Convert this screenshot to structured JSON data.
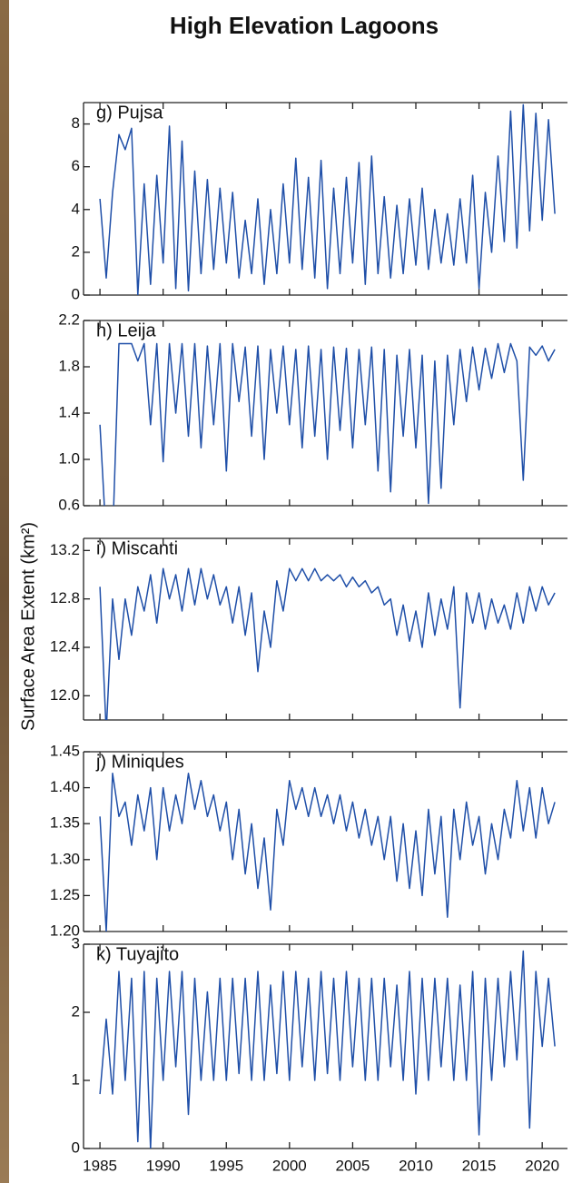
{
  "title": "High Elevation Lagoons",
  "ylabel": "Surface Area Extent (km²)",
  "chart_data": [
    {
      "type": "line",
      "title": "g) Pujsa",
      "color": "#1f4fa8",
      "x": [
        1985,
        1985.5,
        1986,
        1986.5,
        1987,
        1987.5,
        1988,
        1988.5,
        1989,
        1989.5,
        1990,
        1990.5,
        1991,
        1991.5,
        1992,
        1992.5,
        1993,
        1993.5,
        1994,
        1994.5,
        1995,
        1995.5,
        1996,
        1996.5,
        1997,
        1997.5,
        1998,
        1998.5,
        1999,
        1999.5,
        2000,
        2000.5,
        2001,
        2001.5,
        2002,
        2002.5,
        2003,
        2003.5,
        2004,
        2004.5,
        2005,
        2005.5,
        2006,
        2006.5,
        2007,
        2007.5,
        2008,
        2008.5,
        2009,
        2009.5,
        2010,
        2010.5,
        2011,
        2011.5,
        2012,
        2012.5,
        2013,
        2013.5,
        2014,
        2014.5,
        2015,
        2015.5,
        2016,
        2016.5,
        2017,
        2017.5,
        2018,
        2018.5,
        2019,
        2019.5,
        2020,
        2020.5,
        2021
      ],
      "values": [
        4.5,
        0.8,
        4.8,
        7.5,
        6.8,
        7.8,
        0,
        5.2,
        0.5,
        5.6,
        1.5,
        7.9,
        0.3,
        7.2,
        0.2,
        5.8,
        1.0,
        5.4,
        1.2,
        5.0,
        1.5,
        4.8,
        0.8,
        3.5,
        1.0,
        4.5,
        0.5,
        4.0,
        1.0,
        5.2,
        1.5,
        6.4,
        1.2,
        5.5,
        0.8,
        6.3,
        0.3,
        5.0,
        1.0,
        5.5,
        1.5,
        6.2,
        0.5,
        6.5,
        1.0,
        4.6,
        0.8,
        4.2,
        1.0,
        4.5,
        1.4,
        5.0,
        1.2,
        4.0,
        1.5,
        3.8,
        1.4,
        4.5,
        1.5,
        5.6,
        0.3,
        4.8,
        2.0,
        6.5,
        2.5,
        8.6,
        2.2,
        8.9,
        3.0,
        8.5,
        3.5,
        8.2,
        3.8
      ],
      "xlim": [
        1983.7,
        2022
      ],
      "xticks": [
        1985,
        1990,
        1995,
        2000,
        2005,
        2010,
        2015,
        2020
      ],
      "ylim": [
        0,
        9
      ],
      "yticks": [
        0,
        2,
        4,
        6,
        8
      ]
    },
    {
      "type": "line",
      "title": "h) Leija",
      "color": "#1f4fa8",
      "x": [
        1985,
        1985.5,
        1986,
        1986.5,
        1987,
        1987.5,
        1988,
        1988.5,
        1989,
        1989.5,
        1990,
        1990.5,
        1991,
        1991.5,
        1992,
        1992.5,
        1993,
        1993.5,
        1994,
        1994.5,
        1995,
        1995.5,
        1996,
        1996.5,
        1997,
        1997.5,
        1998,
        1998.5,
        1999,
        1999.5,
        2000,
        2000.5,
        2001,
        2001.5,
        2002,
        2002.5,
        2003,
        2003.5,
        2004,
        2004.5,
        2005,
        2005.5,
        2006,
        2006.5,
        2007,
        2007.5,
        2008,
        2008.5,
        2009,
        2009.5,
        2010,
        2010.5,
        2011,
        2011.5,
        2012,
        2012.5,
        2013,
        2013.5,
        2014,
        2014.5,
        2015,
        2015.5,
        2016,
        2016.5,
        2017,
        2017.5,
        2018,
        2018.5,
        2019,
        2019.5,
        2020,
        2020.5,
        2021
      ],
      "values": [
        1.3,
        0.3,
        0.3,
        2.0,
        2.0,
        2.0,
        1.85,
        2.0,
        1.3,
        2.0,
        0.98,
        2.0,
        1.4,
        2.0,
        1.2,
        2.0,
        1.1,
        1.98,
        1.3,
        2.0,
        0.9,
        2.0,
        1.5,
        1.97,
        1.2,
        1.98,
        1.0,
        1.95,
        1.4,
        1.98,
        1.3,
        1.95,
        1.1,
        1.98,
        1.2,
        1.95,
        1.0,
        1.97,
        1.25,
        1.96,
        1.1,
        1.95,
        1.3,
        1.97,
        0.9,
        1.95,
        0.72,
        1.9,
        1.2,
        1.95,
        1.1,
        1.9,
        0.62,
        1.85,
        0.75,
        1.9,
        1.3,
        1.95,
        1.5,
        1.97,
        1.6,
        1.96,
        1.7,
        2.0,
        1.75,
        2.0,
        1.85,
        0.82,
        1.97,
        1.9,
        1.98,
        1.85,
        1.95
      ],
      "xlim": [
        1983.7,
        2022
      ],
      "xticks": [
        1985,
        1990,
        1995,
        2000,
        2005,
        2010,
        2015,
        2020
      ],
      "ylim": [
        0.6,
        2.2
      ],
      "yticks": [
        0.6,
        {
          "value": 1,
          "label": "1.0"
        },
        1.4,
        1.8,
        2.2
      ]
    },
    {
      "type": "line",
      "title": "i) Miscanti",
      "color": "#1f4fa8",
      "x": [
        1985,
        1985.5,
        1986,
        1986.5,
        1987,
        1987.5,
        1988,
        1988.5,
        1989,
        1989.5,
        1990,
        1990.5,
        1991,
        1991.5,
        1992,
        1992.5,
        1993,
        1993.5,
        1994,
        1994.5,
        1995,
        1995.5,
        1996,
        1996.5,
        1997,
        1997.5,
        1998,
        1998.5,
        1999,
        1999.5,
        2000,
        2000.5,
        2001,
        2001.5,
        2002,
        2002.5,
        2003,
        2003.5,
        2004,
        2004.5,
        2005,
        2005.5,
        2006,
        2006.5,
        2007,
        2007.5,
        2008,
        2008.5,
        2009,
        2009.5,
        2010,
        2010.5,
        2011,
        2011.5,
        2012,
        2012.5,
        2013,
        2013.5,
        2014,
        2014.5,
        2015,
        2015.5,
        2016,
        2016.5,
        2017,
        2017.5,
        2018,
        2018.5,
        2019,
        2019.5,
        2020,
        2020.5,
        2021
      ],
      "values": [
        12.9,
        11.7,
        12.8,
        12.3,
        12.8,
        12.5,
        12.9,
        12.7,
        13.0,
        12.6,
        13.05,
        12.8,
        13.0,
        12.7,
        13.05,
        12.75,
        13.05,
        12.8,
        13.0,
        12.75,
        12.9,
        12.6,
        12.9,
        12.5,
        12.85,
        12.2,
        12.7,
        12.4,
        12.95,
        12.7,
        13.05,
        12.95,
        13.05,
        12.95,
        13.05,
        12.95,
        13.0,
        12.95,
        13.0,
        12.9,
        12.98,
        12.9,
        12.95,
        12.85,
        12.9,
        12.75,
        12.8,
        12.5,
        12.75,
        12.45,
        12.7,
        12.4,
        12.85,
        12.5,
        12.8,
        12.55,
        12.9,
        11.9,
        12.85,
        12.6,
        12.85,
        12.55,
        12.8,
        12.6,
        12.75,
        12.55,
        12.85,
        12.6,
        12.9,
        12.7,
        12.9,
        12.75,
        12.85
      ],
      "xlim": [
        1983.7,
        2022
      ],
      "xticks": [
        1985,
        1990,
        1995,
        2000,
        2005,
        2010,
        2015,
        2020
      ],
      "ylim": [
        11.8,
        13.3
      ],
      "yticks": [
        {
          "value": 12,
          "label": "12.0"
        },
        12.4,
        12.8,
        13.2
      ]
    },
    {
      "type": "line",
      "title": "j) Miniques",
      "color": "#1f4fa8",
      "x": [
        1985,
        1985.5,
        1986,
        1986.5,
        1987,
        1987.5,
        1988,
        1988.5,
        1989,
        1989.5,
        1990,
        1990.5,
        1991,
        1991.5,
        1992,
        1992.5,
        1993,
        1993.5,
        1994,
        1994.5,
        1995,
        1995.5,
        1996,
        1996.5,
        1997,
        1997.5,
        1998,
        1998.5,
        1999,
        1999.5,
        2000,
        2000.5,
        2001,
        2001.5,
        2002,
        2002.5,
        2003,
        2003.5,
        2004,
        2004.5,
        2005,
        2005.5,
        2006,
        2006.5,
        2007,
        2007.5,
        2008,
        2008.5,
        2009,
        2009.5,
        2010,
        2010.5,
        2011,
        2011.5,
        2012,
        2012.5,
        2013,
        2013.5,
        2014,
        2014.5,
        2015,
        2015.5,
        2016,
        2016.5,
        2017,
        2017.5,
        2018,
        2018.5,
        2019,
        2019.5,
        2020,
        2020.5,
        2021
      ],
      "values": [
        1.36,
        1.2,
        1.42,
        1.36,
        1.38,
        1.32,
        1.39,
        1.34,
        1.4,
        1.3,
        1.4,
        1.34,
        1.39,
        1.35,
        1.42,
        1.37,
        1.41,
        1.36,
        1.39,
        1.34,
        1.38,
        1.3,
        1.37,
        1.28,
        1.35,
        1.26,
        1.33,
        1.23,
        1.37,
        1.32,
        1.41,
        1.37,
        1.4,
        1.36,
        1.4,
        1.36,
        1.39,
        1.35,
        1.39,
        1.34,
        1.38,
        1.33,
        1.37,
        1.32,
        1.36,
        1.3,
        1.36,
        1.27,
        1.35,
        1.26,
        1.34,
        1.25,
        1.37,
        1.28,
        1.36,
        1.22,
        1.37,
        1.3,
        1.38,
        1.32,
        1.36,
        1.28,
        1.35,
        1.3,
        1.37,
        1.33,
        1.41,
        1.34,
        1.4,
        1.33,
        1.4,
        1.35,
        1.38
      ],
      "xlim": [
        1983.7,
        2022
      ],
      "xticks": [
        1985,
        1990,
        1995,
        2000,
        2005,
        2010,
        2015,
        2020
      ],
      "ylim": [
        1.2,
        1.45
      ],
      "yticks": [
        {
          "value": 1.2,
          "label": "1.20"
        },
        1.25,
        {
          "value": 1.3,
          "label": "1.30"
        },
        1.35,
        {
          "value": 1.4,
          "label": "1.40"
        },
        1.45
      ]
    },
    {
      "type": "line",
      "title": "k) Tuyajito",
      "color": "#1f4fa8",
      "x": [
        1985,
        1985.5,
        1986,
        1986.5,
        1987,
        1987.5,
        1988,
        1988.5,
        1989,
        1989.5,
        1990,
        1990.5,
        1991,
        1991.5,
        1992,
        1992.5,
        1993,
        1993.5,
        1994,
        1994.5,
        1995,
        1995.5,
        1996,
        1996.5,
        1997,
        1997.5,
        1998,
        1998.5,
        1999,
        1999.5,
        2000,
        2000.5,
        2001,
        2001.5,
        2002,
        2002.5,
        2003,
        2003.5,
        2004,
        2004.5,
        2005,
        2005.5,
        2006,
        2006.5,
        2007,
        2007.5,
        2008,
        2008.5,
        2009,
        2009.5,
        2010,
        2010.5,
        2011,
        2011.5,
        2012,
        2012.5,
        2013,
        2013.5,
        2014,
        2014.5,
        2015,
        2015.5,
        2016,
        2016.5,
        2017,
        2017.5,
        2018,
        2018.5,
        2019,
        2019.5,
        2020,
        2020.5,
        2021
      ],
      "values": [
        0.8,
        1.9,
        0.8,
        2.6,
        1.0,
        2.5,
        0.1,
        2.6,
        0.0,
        2.5,
        1.0,
        2.6,
        1.2,
        2.6,
        0.5,
        2.5,
        1.0,
        2.3,
        1.0,
        2.5,
        1.0,
        2.5,
        1.1,
        2.5,
        1.0,
        2.6,
        1.0,
        2.4,
        1.1,
        2.6,
        1.0,
        2.6,
        1.2,
        2.5,
        1.0,
        2.6,
        1.1,
        2.5,
        1.0,
        2.6,
        1.2,
        2.5,
        1.0,
        2.5,
        1.0,
        2.5,
        1.2,
        2.4,
        1.0,
        2.6,
        0.8,
        2.5,
        1.0,
        2.5,
        1.2,
        2.5,
        1.0,
        2.4,
        1.0,
        2.6,
        0.2,
        2.5,
        1.0,
        2.5,
        1.2,
        2.6,
        1.3,
        2.9,
        0.3,
        2.6,
        1.5,
        2.5,
        1.5
      ],
      "xlim": [
        1983.7,
        2022
      ],
      "xticks": [
        1985,
        1990,
        1995,
        2000,
        2005,
        2010,
        2015,
        2020
      ],
      "ylim": [
        0,
        3
      ],
      "yticks": [
        0,
        1,
        2,
        3
      ]
    }
  ]
}
